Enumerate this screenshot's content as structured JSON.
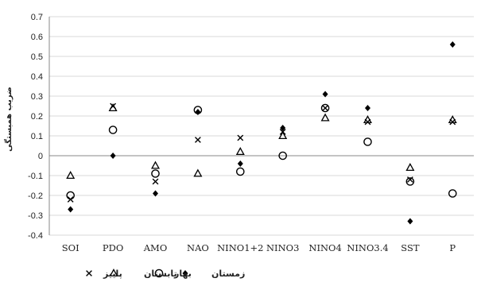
{
  "chart_data": {
    "type": "scatter",
    "ylabel": "ضریب همبستگی",
    "ylim": [
      -0.4,
      0.7
    ],
    "ytick_step": 0.1,
    "yticks": [
      "-0.4",
      "-0.3",
      "-0.2",
      "-0.1",
      "0",
      "0.1",
      "0.2",
      "0.3",
      "0.4",
      "0.5",
      "0.6",
      "0.7"
    ],
    "categories": [
      "SOI",
      "PDO",
      "AMO",
      "NAO",
      "NINO1+2",
      "NINO3",
      "NINO4",
      "NINO3.4",
      "SST",
      "P"
    ],
    "grid": "horizontal",
    "legend_position": "bottom",
    "series": [
      {
        "name": "زمستان",
        "marker": "diamond",
        "values": [
          -0.27,
          0.0,
          -0.19,
          0.22,
          -0.04,
          0.14,
          0.31,
          0.24,
          -0.33,
          0.56
        ]
      },
      {
        "name": "بهار",
        "marker": "circle",
        "values": [
          -0.2,
          0.13,
          -0.09,
          0.23,
          -0.08,
          0.0,
          0.24,
          0.07,
          -0.13,
          -0.19
        ]
      },
      {
        "name": "تابستان",
        "marker": "triangle",
        "values": [
          -0.1,
          0.24,
          -0.05,
          -0.09,
          0.02,
          0.1,
          0.19,
          0.18,
          -0.06,
          0.18
        ]
      },
      {
        "name": "پاییز",
        "marker": "cross",
        "values": [
          -0.22,
          0.25,
          -0.13,
          0.08,
          0.09,
          0.12,
          0.24,
          0.17,
          -0.12,
          0.17
        ]
      }
    ],
    "colors": {
      "marker": "#000000",
      "grid": "#d9d9d9",
      "axis": "#888888"
    }
  }
}
